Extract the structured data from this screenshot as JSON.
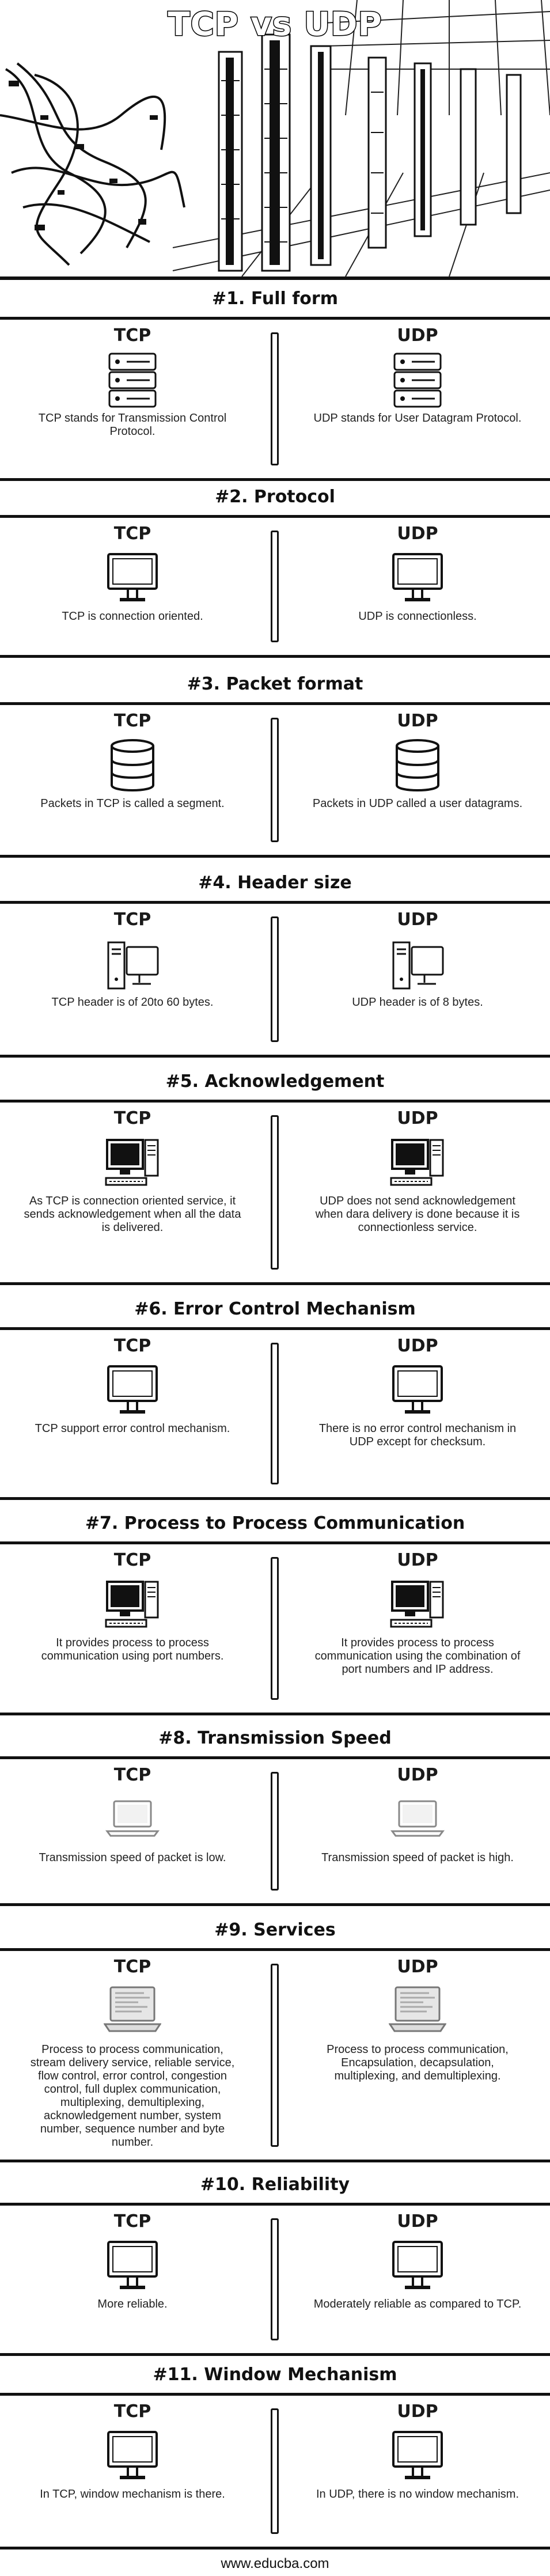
{
  "title": "TCP vs UDP",
  "col_left": "TCP",
  "col_right": "UDP",
  "sections": [
    {
      "heading": "#1. Full form",
      "icon": "server-icon",
      "tcp": "TCP stands for Transmission Control Protocol.",
      "udp": "UDP stands for User Datagram Protocol."
    },
    {
      "heading": "#2. Protocol",
      "icon": "monitor-icon",
      "tcp": "TCP is connection oriented.",
      "udp": "UDP is connectionless."
    },
    {
      "heading": "#3. Packet format",
      "icon": "database-icon",
      "tcp": "Packets in TCP is called a segment.",
      "udp": "Packets in UDP called a user datagrams."
    },
    {
      "heading": "#4. Header size",
      "icon": "desktop-tower-icon",
      "tcp": "TCP header is of 20to 60 bytes.",
      "udp": "UDP header is of 8 bytes."
    },
    {
      "heading": "#5. Acknowledgement",
      "icon": "computer-icon",
      "tcp": "As TCP is connection oriented service, it sends acknowledgement when all the data is delivered.",
      "udp": "UDP does not send acknowledgement when dara delivery is done because it is connectionless service."
    },
    {
      "heading": "#6. Error Control Mechanism",
      "icon": "monitor-icon",
      "tcp": "TCP support error control mechanism.",
      "udp": "There is no error control mechanism in UDP except for checksum."
    },
    {
      "heading": "#7. Process to Process Communication",
      "icon": "computer-icon",
      "tcp": "It provides process to process communication using port numbers.",
      "udp": "It provides process to process communication using the combination of port numbers and IP address."
    },
    {
      "heading": "#8. Transmission Speed",
      "icon": "laptop-icon",
      "tcp": "Transmission speed of packet is low.",
      "udp": "Transmission speed of packet is high."
    },
    {
      "heading": "#9. Services",
      "icon": "laptop-screen-icon",
      "tcp": "Process to process communication, stream delivery service, reliable service, flow control, error control, congestion control, full duplex communication, multiplexing, demultiplexing, acknowledgement number, system number, sequence number and byte number.",
      "udp": "Process to process communication, Encapsulation, decapsulation, multiplexing, and demultiplexing."
    },
    {
      "heading": "#10. Reliability",
      "icon": "monitor-icon",
      "tcp": "More reliable.",
      "udp": "Moderately reliable as compared to TCP."
    },
    {
      "heading": "#11. Window Mechanism",
      "icon": "monitor-icon",
      "tcp": "In TCP, window mechanism is there.",
      "udp": "In UDP, there is no window mechanism."
    }
  ],
  "footer": "www.educba.com"
}
